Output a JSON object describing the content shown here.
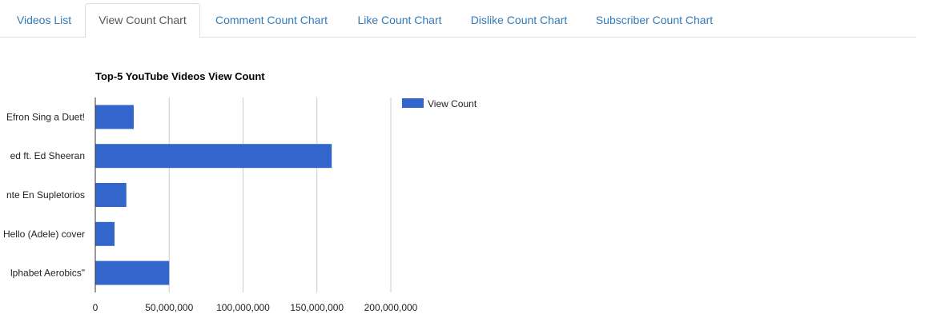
{
  "tabs": [
    {
      "label": "Videos List",
      "active": false
    },
    {
      "label": "View Count Chart",
      "active": true
    },
    {
      "label": "Comment Count Chart",
      "active": false
    },
    {
      "label": "Like Count Chart",
      "active": false
    },
    {
      "label": "Dislike Count Chart",
      "active": false
    },
    {
      "label": "Subscriber Count Chart",
      "active": false
    }
  ],
  "colors": {
    "bar": "#3366cc",
    "link": "#337ab7",
    "active_tab_text": "#555555",
    "grid": "#cccccc"
  },
  "chart_data": {
    "type": "bar",
    "orientation": "horizontal",
    "title": "Top-5 YouTube Videos View Count",
    "categories": [
      "Efron Sing a Duet!",
      "ed ft. Ed Sheeran",
      "nte En Supletorios",
      "Hello (Adele) cover",
      "lphabet Aerobics\""
    ],
    "series": [
      {
        "name": "View Count",
        "values": [
          26000000,
          160000000,
          21000000,
          13000000,
          50000000
        ]
      }
    ],
    "xlim": [
      0,
      200000000
    ],
    "xticks": [
      "0",
      "50,000,000",
      "100,000,000",
      "150,000,000",
      "200,000,000"
    ],
    "xtick_values": [
      0,
      50000000,
      100000000,
      150000000,
      200000000
    ],
    "grid": true,
    "legend": "right"
  }
}
